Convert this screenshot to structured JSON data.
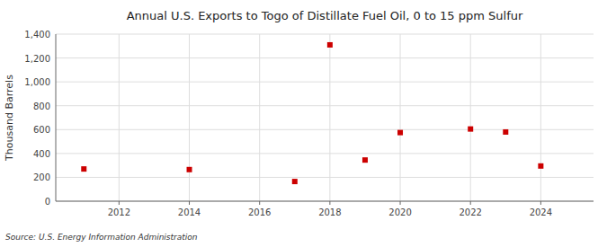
{
  "chart_data": {
    "type": "scatter",
    "title": "Annual U.S. Exports to Togo of Distillate Fuel Oil, 0 to 15 ppm Sulfur",
    "ylabel": "Thousand Barrels",
    "source": "Source: U.S. Energy Information Administration",
    "x": [
      2011,
      2014,
      2017,
      2018,
      2019,
      2020,
      2022,
      2023,
      2024
    ],
    "values": [
      270,
      265,
      165,
      1310,
      345,
      575,
      605,
      580,
      295
    ],
    "color": "#cc0000",
    "marker": "square",
    "grid": true,
    "xlim": [
      2010.2,
      2025.5
    ],
    "xticks": [
      2012,
      2014,
      2016,
      2018,
      2020,
      2022,
      2024
    ],
    "ylim": [
      0,
      1400
    ],
    "yticks": [
      0,
      200,
      400,
      600,
      800,
      {
        "value": 1000,
        "label": "1,000"
      },
      {
        "value": 1200,
        "label": "1,200"
      },
      {
        "value": 1400,
        "label": "1,400"
      }
    ]
  }
}
